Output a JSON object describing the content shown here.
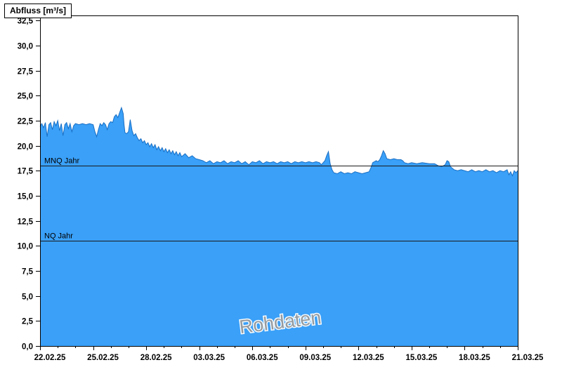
{
  "chart_data": {
    "type": "area",
    "title": "Abfluss [m³/s]",
    "watermark": "Rohdaten",
    "legend_position": "none",
    "grid": "off",
    "x_axis": {
      "ticks": [
        {
          "day": 0,
          "label": "22.02.25"
        },
        {
          "day": 3,
          "label": "25.02.25"
        },
        {
          "day": 6,
          "label": "28.02.25"
        },
        {
          "day": 9,
          "label": "03.03.25"
        },
        {
          "day": 12,
          "label": "06.03.25"
        },
        {
          "day": 15,
          "label": "09.03.25"
        },
        {
          "day": 18,
          "label": "12.03.25"
        },
        {
          "day": 21,
          "label": "15.03.25"
        },
        {
          "day": 24,
          "label": "18.03.25"
        },
        {
          "day": 27,
          "label": "21.03.25"
        }
      ],
      "minor_tick_every_days": 1,
      "range_days": [
        0,
        27
      ]
    },
    "y_axis": {
      "min": 0,
      "max": 32.5,
      "tick_step": 2.5,
      "ticks": [
        {
          "value": 0,
          "label": "0,0"
        },
        {
          "value": 2.5,
          "label": "2,5"
        },
        {
          "value": 5,
          "label": "5,0"
        },
        {
          "value": 7.5,
          "label": "7,5"
        },
        {
          "value": 10,
          "label": "10,0"
        },
        {
          "value": 12.5,
          "label": "12,5"
        },
        {
          "value": 15,
          "label": "15,0"
        },
        {
          "value": 17.5,
          "label": "17,5"
        },
        {
          "value": 20,
          "label": "20,0"
        },
        {
          "value": 22.5,
          "label": "22,5"
        },
        {
          "value": 25,
          "label": "25,0"
        },
        {
          "value": 27.5,
          "label": "27,5"
        },
        {
          "value": 30,
          "label": "30,0"
        },
        {
          "value": 32.5,
          "label": "32,5"
        }
      ]
    },
    "reference_lines": [
      {
        "name": "MNQ Jahr",
        "value": 18.0
      },
      {
        "name": "NQ Jahr",
        "value": 10.5
      }
    ],
    "colors": {
      "fill": "#3AA0F8",
      "line": "#1a6fc4",
      "axis": "#000000",
      "reference_line": "#1a1a1a",
      "watermark": "#9a9a9a"
    },
    "series": [
      {
        "name": "Abfluss",
        "unit": "m³/s",
        "points": [
          [
            0,
            21.9
          ],
          [
            0.1,
            22.2
          ],
          [
            0.2,
            21.8
          ],
          [
            0.3,
            22.3
          ],
          [
            0.4,
            20.9
          ],
          [
            0.5,
            22.1
          ],
          [
            0.6,
            22.3
          ],
          [
            0.7,
            21.6
          ],
          [
            0.8,
            22.4
          ],
          [
            0.9,
            22.0
          ],
          [
            1.0,
            22.5
          ],
          [
            1.1,
            21.5
          ],
          [
            1.2,
            22.2
          ],
          [
            1.3,
            21.0
          ],
          [
            1.4,
            22.1
          ],
          [
            1.5,
            22.3
          ],
          [
            1.6,
            21.7
          ],
          [
            1.7,
            22.2
          ],
          [
            1.8,
            21.4
          ],
          [
            1.9,
            22.0
          ],
          [
            2.0,
            22.2
          ],
          [
            2.2,
            22.1
          ],
          [
            2.4,
            22.2
          ],
          [
            2.6,
            22.1
          ],
          [
            2.8,
            22.2
          ],
          [
            3.0,
            22.1
          ],
          [
            3.1,
            21.4
          ],
          [
            3.2,
            20.9
          ],
          [
            3.3,
            21.6
          ],
          [
            3.4,
            22.2
          ],
          [
            3.5,
            22.0
          ],
          [
            3.6,
            22.3
          ],
          [
            3.7,
            22.1
          ],
          [
            3.8,
            21.6
          ],
          [
            3.9,
            22.2
          ],
          [
            4.0,
            22.4
          ],
          [
            4.1,
            22.3
          ],
          [
            4.2,
            22.9
          ],
          [
            4.3,
            23.1
          ],
          [
            4.4,
            22.8
          ],
          [
            4.5,
            23.3
          ],
          [
            4.6,
            23.8
          ],
          [
            4.7,
            23.2
          ],
          [
            4.75,
            22.1
          ],
          [
            4.8,
            21.3
          ],
          [
            4.9,
            21.2
          ],
          [
            5.0,
            21.4
          ],
          [
            5.1,
            22.6
          ],
          [
            5.2,
            21.5
          ],
          [
            5.3,
            21.0
          ],
          [
            5.4,
            21.2
          ],
          [
            5.5,
            20.8
          ],
          [
            5.6,
            20.5
          ],
          [
            5.7,
            20.7
          ],
          [
            5.8,
            20.3
          ],
          [
            5.9,
            20.5
          ],
          [
            6.0,
            20.1
          ],
          [
            6.1,
            20.3
          ],
          [
            6.2,
            19.9
          ],
          [
            6.3,
            20.2
          ],
          [
            6.4,
            19.8
          ],
          [
            6.5,
            20.1
          ],
          [
            6.6,
            19.6
          ],
          [
            6.7,
            19.9
          ],
          [
            6.8,
            19.5
          ],
          [
            6.9,
            19.8
          ],
          [
            7.0,
            19.4
          ],
          [
            7.1,
            19.7
          ],
          [
            7.2,
            19.3
          ],
          [
            7.3,
            19.6
          ],
          [
            7.4,
            19.2
          ],
          [
            7.5,
            19.5
          ],
          [
            7.6,
            19.1
          ],
          [
            7.7,
            19.4
          ],
          [
            7.8,
            19.0
          ],
          [
            7.9,
            19.3
          ],
          [
            8.0,
            18.9
          ],
          [
            8.2,
            19.2
          ],
          [
            8.4,
            18.8
          ],
          [
            8.6,
            19.0
          ],
          [
            8.8,
            18.7
          ],
          [
            9.0,
            18.6
          ],
          [
            9.2,
            18.5
          ],
          [
            9.4,
            18.3
          ],
          [
            9.6,
            18.5
          ],
          [
            9.8,
            18.2
          ],
          [
            10.0,
            18.4
          ],
          [
            10.2,
            18.3
          ],
          [
            10.4,
            18.5
          ],
          [
            10.6,
            18.2
          ],
          [
            10.8,
            18.4
          ],
          [
            11.0,
            18.3
          ],
          [
            11.2,
            18.5
          ],
          [
            11.4,
            18.2
          ],
          [
            11.6,
            18.4
          ],
          [
            11.8,
            18.1
          ],
          [
            12.0,
            18.4
          ],
          [
            12.2,
            18.3
          ],
          [
            12.4,
            18.5
          ],
          [
            12.6,
            18.2
          ],
          [
            12.8,
            18.4
          ],
          [
            13.0,
            18.3
          ],
          [
            13.2,
            18.4
          ],
          [
            13.4,
            18.2
          ],
          [
            13.6,
            18.4
          ],
          [
            13.8,
            18.3
          ],
          [
            14.0,
            18.4
          ],
          [
            14.2,
            18.2
          ],
          [
            14.4,
            18.4
          ],
          [
            14.6,
            18.3
          ],
          [
            14.8,
            18.4
          ],
          [
            15.0,
            18.3
          ],
          [
            15.2,
            18.4
          ],
          [
            15.4,
            18.3
          ],
          [
            15.6,
            18.4
          ],
          [
            15.8,
            18.3
          ],
          [
            15.9,
            18.1
          ],
          [
            16.0,
            18.3
          ],
          [
            16.1,
            18.5
          ],
          [
            16.2,
            19.0
          ],
          [
            16.3,
            19.4
          ],
          [
            16.4,
            18.2
          ],
          [
            16.5,
            17.6
          ],
          [
            16.6,
            17.3
          ],
          [
            16.8,
            17.2
          ],
          [
            17.0,
            17.4
          ],
          [
            17.2,
            17.2
          ],
          [
            17.4,
            17.3
          ],
          [
            17.6,
            17.2
          ],
          [
            17.8,
            17.4
          ],
          [
            18.0,
            17.3
          ],
          [
            18.2,
            17.2
          ],
          [
            18.4,
            17.3
          ],
          [
            18.6,
            17.4
          ],
          [
            18.7,
            17.8
          ],
          [
            18.8,
            18.3
          ],
          [
            19.0,
            18.5
          ],
          [
            19.1,
            18.4
          ],
          [
            19.2,
            18.6
          ],
          [
            19.3,
            19.0
          ],
          [
            19.4,
            19.5
          ],
          [
            19.5,
            19.2
          ],
          [
            19.6,
            18.7
          ],
          [
            19.8,
            18.6
          ],
          [
            20.0,
            18.7
          ],
          [
            20.2,
            18.6
          ],
          [
            20.4,
            18.6
          ],
          [
            20.5,
            18.5
          ],
          [
            20.6,
            18.3
          ],
          [
            20.8,
            18.2
          ],
          [
            21.0,
            18.3
          ],
          [
            21.3,
            18.2
          ],
          [
            21.6,
            18.3
          ],
          [
            22.0,
            18.2
          ],
          [
            22.3,
            18.2
          ],
          [
            22.5,
            18.0
          ],
          [
            22.7,
            17.9
          ],
          [
            22.9,
            18.1
          ],
          [
            23.0,
            18.5
          ],
          [
            23.1,
            18.4
          ],
          [
            23.2,
            17.9
          ],
          [
            23.4,
            17.6
          ],
          [
            23.6,
            17.5
          ],
          [
            23.8,
            17.6
          ],
          [
            24.0,
            17.5
          ],
          [
            24.2,
            17.4
          ],
          [
            24.4,
            17.6
          ],
          [
            24.6,
            17.4
          ],
          [
            24.8,
            17.5
          ],
          [
            25.0,
            17.4
          ],
          [
            25.2,
            17.6
          ],
          [
            25.4,
            17.4
          ],
          [
            25.6,
            17.5
          ],
          [
            25.8,
            17.3
          ],
          [
            26.0,
            17.5
          ],
          [
            26.2,
            17.4
          ],
          [
            26.4,
            17.6
          ],
          [
            26.5,
            17.1
          ],
          [
            26.6,
            17.4
          ],
          [
            26.7,
            17.0
          ],
          [
            26.8,
            17.5
          ],
          [
            26.9,
            17.3
          ],
          [
            27.0,
            17.5
          ]
        ]
      }
    ]
  }
}
